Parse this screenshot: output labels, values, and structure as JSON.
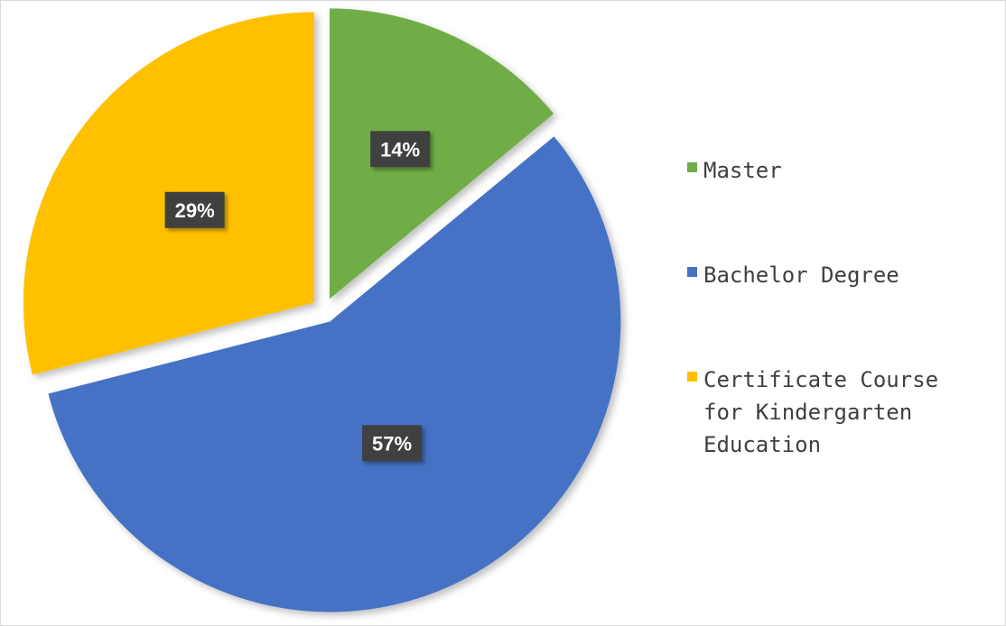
{
  "chart_data": {
    "type": "pie",
    "categories": [
      "Master",
      "Bachelor Degree",
      "Certificate Course for Kindergarten Education"
    ],
    "values": [
      14,
      57,
      29
    ],
    "labels": [
      "14%",
      "57%",
      "29%"
    ],
    "colors": [
      "#70ad47",
      "#4472c4",
      "#ffc000"
    ],
    "label_box_color": "#404040",
    "label_text_color": "#ffffff",
    "title": "",
    "legend_position": "right",
    "exploded": true
  }
}
